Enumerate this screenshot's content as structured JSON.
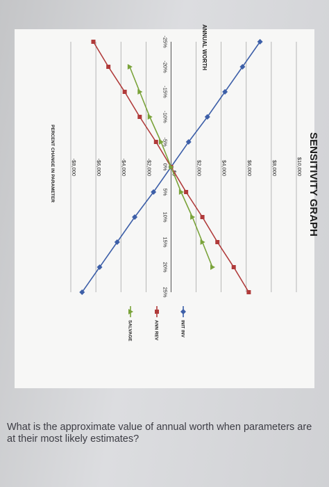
{
  "chart_data": {
    "type": "line",
    "title": "SENSITIVITY GRAPH",
    "ylabel": "ANNUAL WORTH",
    "xlabel": "PERCENT CHANGE IN PARAMETER",
    "x": [
      -25,
      -20,
      -15,
      -10,
      -5,
      0,
      5,
      10,
      15,
      20,
      25
    ],
    "x_tick_labels": [
      "-25%",
      "-20%",
      "-15%",
      "-10%",
      "-5%",
      "0%",
      "5%",
      "10%",
      "15%",
      "20%",
      "25%"
    ],
    "y_tick_values": [
      10000,
      8000,
      6000,
      4000,
      2000,
      0,
      -2000,
      -4000,
      -6000,
      -8000
    ],
    "y_tick_labels": [
      "$10,000",
      "$8,000",
      "$6,000",
      "$4,000",
      "$2,000",
      "$0",
      "-$2,000",
      "-$4,000",
      "-$6,000",
      "-$8,000"
    ],
    "ylim": [
      -8000,
      10000
    ],
    "xlim": [
      -25,
      25
    ],
    "grid": true,
    "legend": "right",
    "series": [
      {
        "name": "INIT INV",
        "color": "#3d5fa8",
        "marker": "diamond",
        "x": [
          -25,
          -20,
          -15,
          -10,
          -5,
          0,
          5,
          10,
          15,
          20,
          25
        ],
        "values": [
          7100,
          5700,
          4300,
          2900,
          1400,
          0,
          -1400,
          -2900,
          -4300,
          -5700,
          -7100
        ]
      },
      {
        "name": "ANN REV",
        "color": "#b03a3a",
        "marker": "square",
        "x": [
          -25,
          -20,
          -15,
          -10,
          -5,
          0,
          5,
          10,
          15,
          20,
          25
        ],
        "values": [
          -6200,
          -5000,
          -3700,
          -2500,
          -1200,
          0,
          1200,
          2500,
          3700,
          5000,
          6200
        ]
      },
      {
        "name": "SALVAGE",
        "color": "#7aa33a",
        "marker": "triangle",
        "x": [
          -20,
          -15,
          -10,
          -5,
          0,
          5,
          10,
          15,
          20
        ],
        "values": [
          -3300,
          -2500,
          -1700,
          -800,
          0,
          800,
          1700,
          2500,
          3300
        ]
      }
    ]
  },
  "question": "What is the approximate value of annual worth when parameters are at their most likely estimates?"
}
